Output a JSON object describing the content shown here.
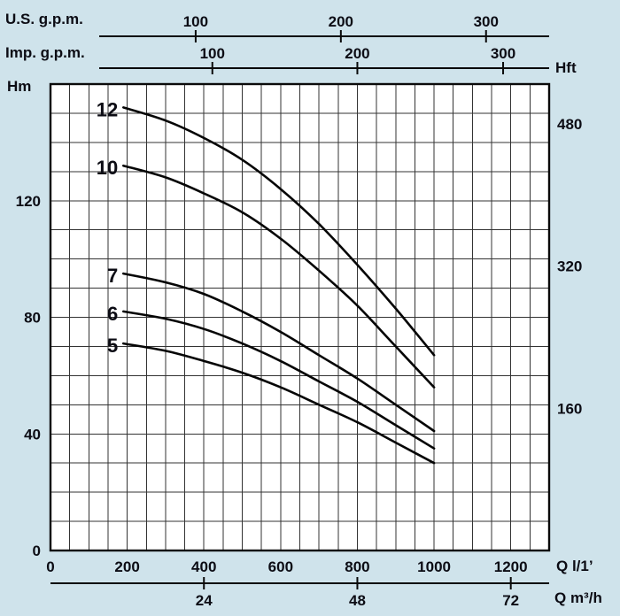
{
  "colors": {
    "background": "#cfe3eb",
    "plot_bg": "#ffffff",
    "grid": "#333333",
    "frame": "#0a0a0a",
    "curve": "#050505",
    "text": "#0c0c14"
  },
  "chart_data": {
    "type": "line",
    "description": "Pump head-capacity performance curves",
    "x_axis": {
      "label": "Q l/1’",
      "min": 0,
      "max": 1300,
      "major_ticks": [
        0,
        200,
        400,
        600,
        800,
        1000,
        1200
      ],
      "minor_step": 50,
      "grid": "on"
    },
    "y_axis_left": {
      "label": "Hm",
      "min": 0,
      "max": 160,
      "ticks": [
        0,
        40,
        80,
        120
      ],
      "minor_step": 10,
      "grid": "on"
    },
    "y_axis_right": {
      "label": "Hft",
      "ticks": [
        160,
        320,
        480
      ]
    },
    "top_axis_us": {
      "label": "U.S. g.p.m.",
      "ticks": [
        100,
        200,
        300
      ],
      "tick_flow_lmin": [
        378.5,
        757,
        1135.5
      ]
    },
    "top_axis_imp": {
      "label": "Imp. g.p.m.",
      "ticks": [
        100,
        200,
        300
      ],
      "tick_flow_lmin": [
        422,
        800,
        1180
      ]
    },
    "bottom_axis_m3h": {
      "label": "Q m³/h",
      "ticks": [
        24,
        48,
        72
      ],
      "tick_flow_lmin": [
        400,
        800,
        1200
      ]
    },
    "series": [
      {
        "name": "12",
        "points": [
          [
            190,
            152
          ],
          [
            300,
            147.5
          ],
          [
            400,
            141.5
          ],
          [
            500,
            134
          ],
          [
            600,
            124
          ],
          [
            700,
            112
          ],
          [
            800,
            98
          ],
          [
            900,
            83
          ],
          [
            1000,
            67
          ]
        ]
      },
      {
        "name": "10",
        "points": [
          [
            190,
            132
          ],
          [
            300,
            128
          ],
          [
            400,
            122.5
          ],
          [
            500,
            116
          ],
          [
            600,
            107
          ],
          [
            700,
            96
          ],
          [
            800,
            84
          ],
          [
            900,
            70
          ],
          [
            1000,
            56
          ]
        ]
      },
      {
        "name": "7",
        "points": [
          [
            190,
            95
          ],
          [
            300,
            92
          ],
          [
            400,
            88
          ],
          [
            500,
            82
          ],
          [
            600,
            75
          ],
          [
            700,
            67
          ],
          [
            800,
            59
          ],
          [
            900,
            50
          ],
          [
            1000,
            41
          ]
        ]
      },
      {
        "name": "6",
        "points": [
          [
            190,
            82
          ],
          [
            300,
            79.5
          ],
          [
            400,
            76
          ],
          [
            500,
            71
          ],
          [
            600,
            65
          ],
          [
            700,
            58
          ],
          [
            800,
            51
          ],
          [
            900,
            43
          ],
          [
            1000,
            35
          ]
        ]
      },
      {
        "name": "5",
        "points": [
          [
            190,
            71
          ],
          [
            300,
            68.5
          ],
          [
            400,
            65
          ],
          [
            500,
            61
          ],
          [
            600,
            56
          ],
          [
            700,
            50
          ],
          [
            800,
            44
          ],
          [
            900,
            37
          ],
          [
            1000,
            30
          ]
        ]
      }
    ]
  }
}
